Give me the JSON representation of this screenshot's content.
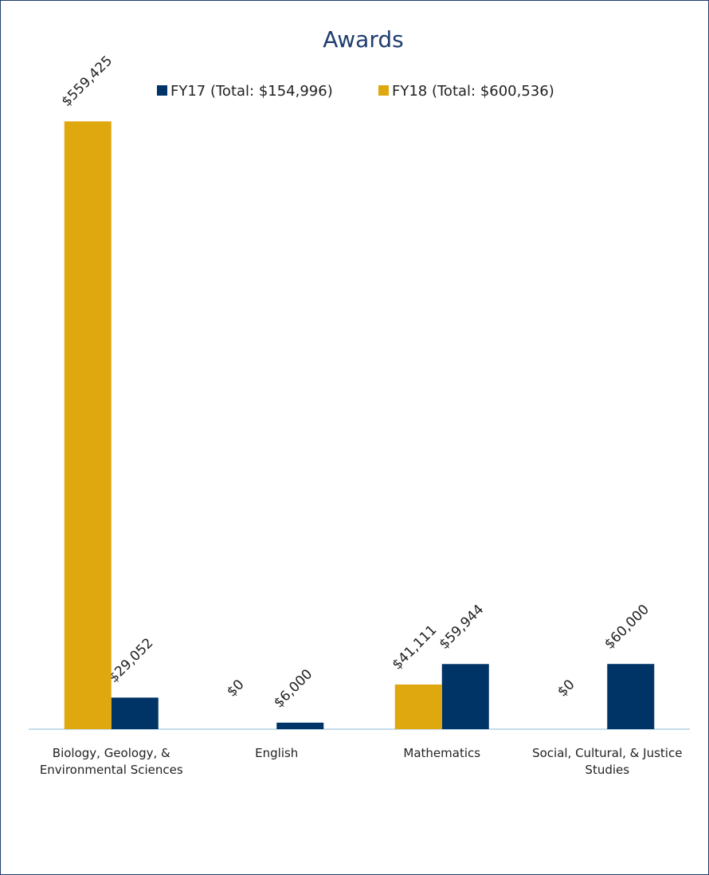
{
  "chart_data": {
    "type": "bar",
    "title": "Awards",
    "categories": [
      "Biology, Geology, & Environmental Sciences",
      "English",
      "Mathematics",
      "Social, Cultural, & Justice Studies"
    ],
    "series": [
      {
        "name": "FY17 (Total: $154,996)",
        "color": "#003366",
        "values": [
          29052,
          6000,
          59944,
          60000
        ],
        "value_labels": [
          "$29,052",
          "$6,000",
          "$59,944",
          "$60,000"
        ]
      },
      {
        "name": "FY18 (Total: $600,536)",
        "color": "#e0a80f",
        "values": [
          559425,
          0,
          41111,
          0
        ],
        "value_labels": [
          "$559,425",
          "$0",
          "$41,111",
          "$0"
        ]
      }
    ],
    "ylim": [
      0,
      600000
    ]
  }
}
